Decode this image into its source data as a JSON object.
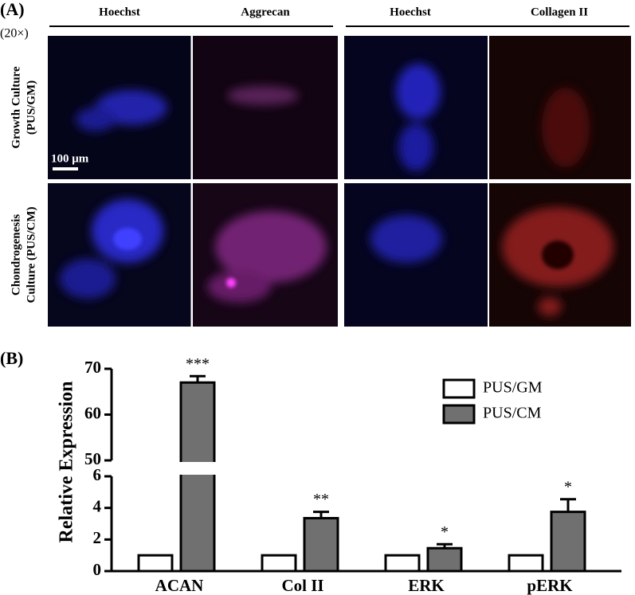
{
  "figure": {
    "panel_labels": [
      "(A)",
      "(B)"
    ],
    "magnification": "(20×)",
    "column_headers": [
      "Hoechst",
      "Aggrecan",
      "Hoechst",
      "Collagen II"
    ],
    "row_labels": [
      [
        "Growth Culture",
        "(PUS/GM)"
      ],
      [
        "Chondrogenesis",
        "Culture (PUS/CM)"
      ]
    ],
    "scale_bar": "100 μm"
  },
  "chart_data": {
    "type": "bar",
    "ylabel": "Relative Expression",
    "categories": [
      "ACAN",
      "Col II",
      "ERK",
      "pERK"
    ],
    "series": [
      {
        "name": "PUS/GM",
        "color": "#ffffff",
        "values": [
          1,
          1,
          1,
          1
        ]
      },
      {
        "name": "PUS/CM",
        "color": "#707070",
        "values": [
          67,
          3.35,
          1.45,
          3.75
        ],
        "errors": [
          1.4,
          0.4,
          0.25,
          0.8
        ],
        "annotations": [
          "***",
          "**",
          "*",
          "*"
        ]
      }
    ],
    "ylim": [
      0,
      70
    ],
    "axis_break": [
      6,
      50
    ],
    "yticks": [
      0,
      2,
      4,
      6,
      50,
      60,
      70
    ],
    "legend": "upper right"
  }
}
